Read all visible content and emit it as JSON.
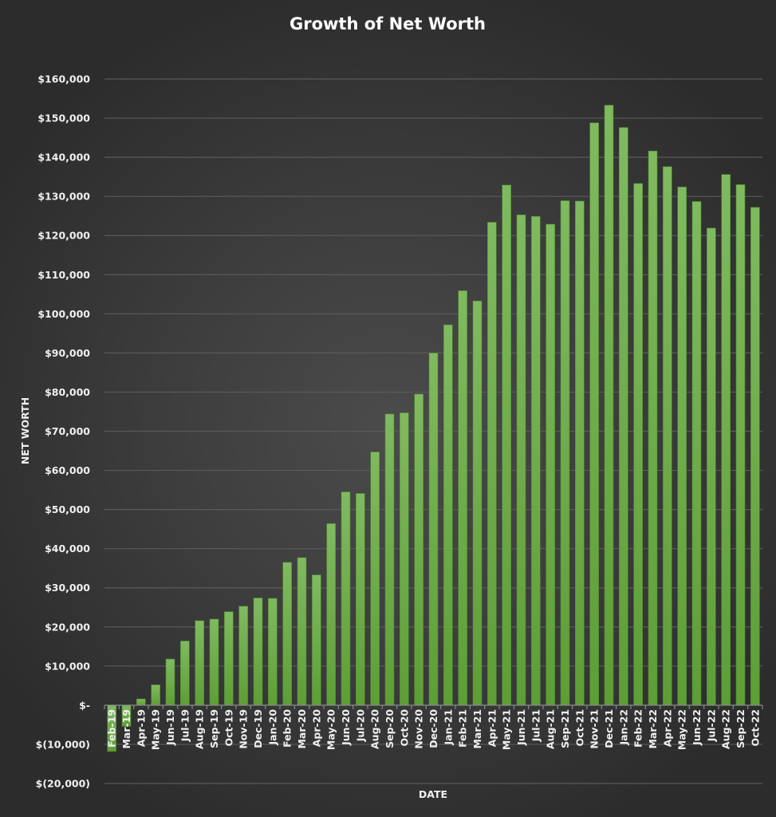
{
  "chart_data": {
    "type": "bar",
    "title": "Growth of Net Worth",
    "xlabel": "DATE",
    "ylabel": "NET WORTH",
    "ylim": [
      -20000,
      160000
    ],
    "yticks": [
      -20000,
      -10000,
      0,
      10000,
      20000,
      30000,
      40000,
      50000,
      60000,
      70000,
      80000,
      90000,
      100000,
      110000,
      120000,
      130000,
      140000,
      150000,
      160000
    ],
    "ytick_labels": [
      "$(20,000)",
      "$(10,000)",
      "$-",
      "$10,000",
      "$20,000",
      "$30,000",
      "$40,000",
      "$50,000",
      "$60,000",
      "$70,000",
      "$80,000",
      "$90,000",
      "$100,000",
      "$110,000",
      "$120,000",
      "$130,000",
      "$140,000",
      "$150,000",
      "$160,000"
    ],
    "grid": true,
    "legend": "none",
    "bar_color": "#6aaa44",
    "categories": [
      "Feb-19",
      "Mar-19",
      "Apr-19",
      "May-19",
      "Jun-19",
      "Jul-19",
      "Aug-19",
      "Sep-19",
      "Oct-19",
      "Nov-19",
      "Dec-19",
      "Jan-20",
      "Feb-20",
      "Mar-20",
      "Apr-20",
      "May-20",
      "Jun-20",
      "Jul-20",
      "Aug-20",
      "Sep-20",
      "Oct-20",
      "Nov-20",
      "Dec-20",
      "Jan-21",
      "Feb-21",
      "Mar-21",
      "Apr-21",
      "May-21",
      "Jun-21",
      "Jul-21",
      "Aug-21",
      "Sep-21",
      "Oct-21",
      "Nov-21",
      "Dec-21",
      "Jan-22",
      "Feb-22",
      "Mar-22",
      "Apr-22",
      "May-22",
      "Jun-22",
      "Jul-22",
      "Aug-22",
      "Sep-22",
      "Oct-22"
    ],
    "values": [
      -11800,
      -5400,
      1600,
      5200,
      11800,
      16400,
      21600,
      22000,
      23900,
      25300,
      27400,
      27300,
      36500,
      37700,
      33300,
      46400,
      54500,
      54100,
      64700,
      74400,
      74700,
      79500,
      90000,
      97200,
      105900,
      103300,
      123400,
      132900,
      125300,
      124900,
      122900,
      128900,
      128800,
      148800,
      153300,
      147600,
      133300,
      141600,
      137600,
      132400,
      128700,
      121900,
      135600,
      133000,
      127200
    ]
  }
}
